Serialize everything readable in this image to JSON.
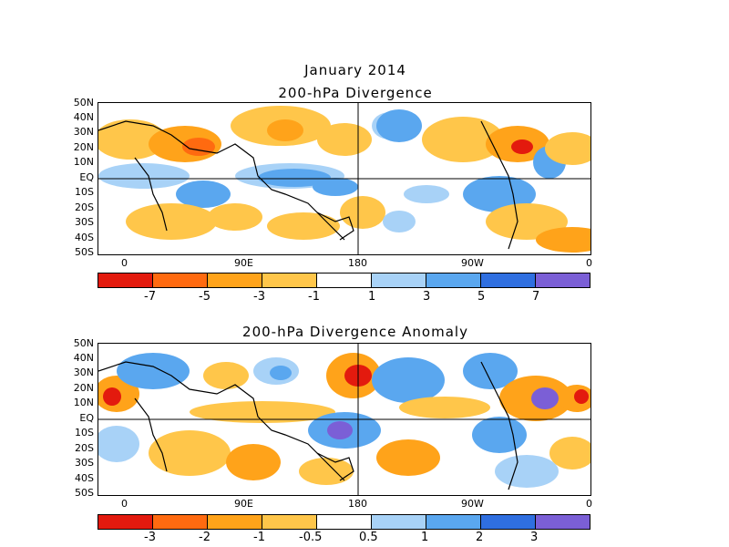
{
  "header": {
    "month": "January 2014",
    "panel1_title": "200-hPa Divergence",
    "panel2_title": "200-hPa Divergence Anomaly"
  },
  "lat_labels": [
    "50N",
    "40N",
    "30N",
    "20N",
    "10N",
    "EQ",
    "10S",
    "20S",
    "30S",
    "40S",
    "50S"
  ],
  "lon_labels": [
    "0",
    "90E",
    "180",
    "90W",
    "0"
  ],
  "colorbar1": {
    "labels": [
      "-7",
      "-5",
      "-3",
      "-1",
      "1",
      "3",
      "5",
      "7"
    ],
    "colors": [
      "#e31a0e",
      "#ff6a10",
      "#ffa31a",
      "#ffc64a",
      "#ffffff",
      "#a8d2f7",
      "#5aa7ef",
      "#2f6fe0",
      "#7b5fd6"
    ]
  },
  "colorbar2": {
    "labels": [
      "-3",
      "-2",
      "-1",
      "-0.5",
      "0.5",
      "1",
      "2",
      "3"
    ],
    "colors": [
      "#e31a0e",
      "#ff6a10",
      "#ffa31a",
      "#ffc64a",
      "#ffffff",
      "#a8d2f7",
      "#5aa7ef",
      "#2f6fe0",
      "#7b5fd6"
    ]
  }
}
